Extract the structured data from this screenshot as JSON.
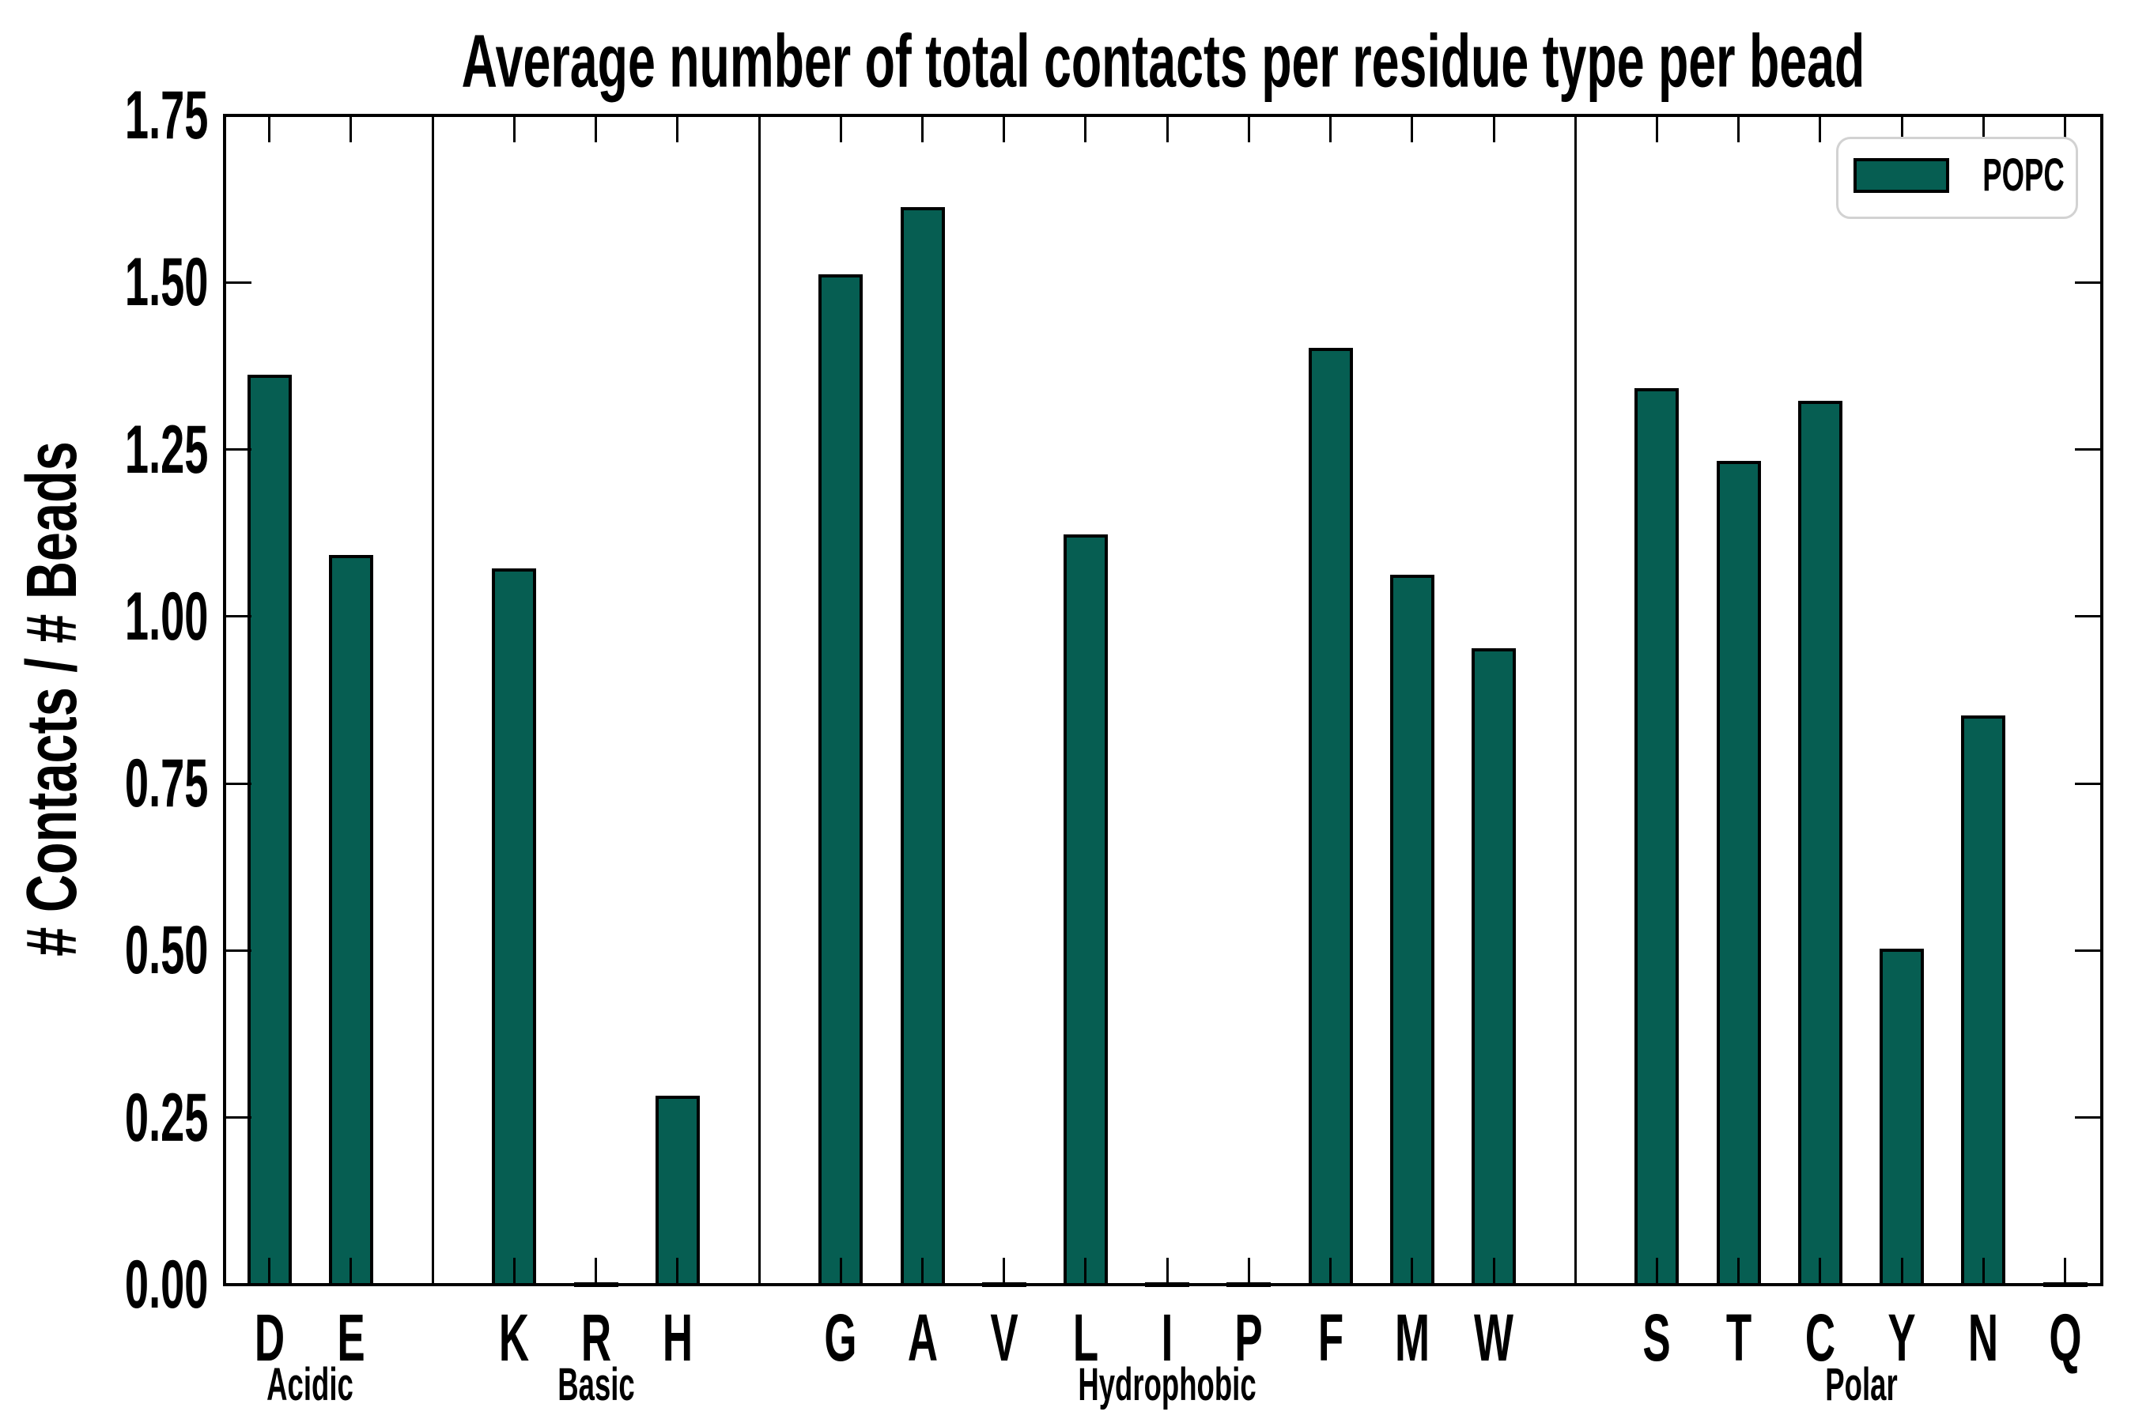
{
  "chart_data": {
    "type": "bar",
    "title": "Average number of total contacts per residue type per bead",
    "ylabel": "# Contacts / # Beads",
    "xlabel": "",
    "ylim": [
      0,
      1.75
    ],
    "ytick_labels": [
      "0.00",
      "0.25",
      "0.50",
      "0.75",
      "1.00",
      "1.25",
      "1.50",
      "1.75"
    ],
    "grid": false,
    "legend": {
      "label": "POPC",
      "position": "upper right"
    },
    "colors": {
      "bar_fill": "#065E52",
      "bar_edge": "#000000",
      "axis": "#000000",
      "legend_border": "#d2d2d2",
      "background": "#ffffff"
    },
    "groups": [
      {
        "label": "Acidic",
        "categories": [
          "D",
          "E"
        ],
        "values": [
          1.36,
          1.09
        ]
      },
      {
        "label": "Basic",
        "categories": [
          "K",
          "R",
          "H"
        ],
        "values": [
          1.07,
          0.0,
          0.28
        ]
      },
      {
        "label": "Hydrophobic",
        "categories": [
          "G",
          "A",
          "V",
          "L",
          "I",
          "P",
          "F",
          "M",
          "W"
        ],
        "values": [
          1.51,
          1.61,
          0.0,
          1.12,
          0.0,
          0.0,
          1.4,
          1.06,
          0.95
        ]
      },
      {
        "label": "Polar",
        "categories": [
          "S",
          "T",
          "C",
          "Y",
          "N",
          "Q"
        ],
        "values": [
          1.34,
          1.23,
          1.32,
          0.5,
          0.85,
          0.0
        ]
      }
    ],
    "series": [
      {
        "name": "POPC",
        "values": [
          1.36,
          1.09,
          1.07,
          0.0,
          0.28,
          1.51,
          1.61,
          0.0,
          1.12,
          0.0,
          0.0,
          1.4,
          1.06,
          0.95,
          1.34,
          1.23,
          1.32,
          0.5,
          0.85,
          0.0
        ]
      }
    ]
  }
}
